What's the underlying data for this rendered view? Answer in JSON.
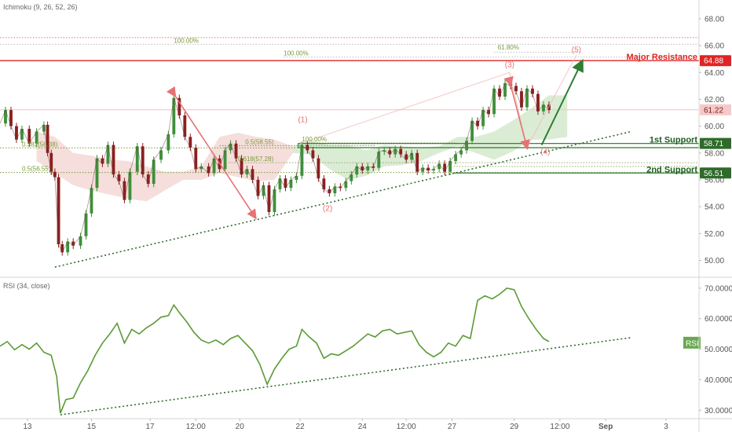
{
  "indicators": {
    "main_label": "Ichimoku (9, 26, 52, 26)",
    "rsi_label": "RSI (34, close)",
    "rsi_tag": "RSI"
  },
  "colors": {
    "up": "#3f8f3a",
    "down": "#8b1f1f",
    "resistance": "#e02424",
    "support": "#2e7d32",
    "arrow_red": "#e57373",
    "arrow_green": "#2e7d32",
    "rsi_line": "#5b9a36",
    "cloud_green": "#cfe5c7",
    "cloud_red": "#f2d3cf",
    "fib": "#7a9a3a"
  },
  "levels": {
    "major_resistance": {
      "label": "Major Resistance",
      "value": "64.88",
      "price": 64.88
    },
    "first_support": {
      "label": "1st Support",
      "value": "58.71",
      "price": 58.71
    },
    "second_support": {
      "label": "2nd Support",
      "value": "56.51",
      "price": 56.51
    },
    "current_price": {
      "value": "61.22",
      "price": 61.22
    }
  },
  "fib_labels": [
    {
      "text": "100.00%",
      "price": 66.1,
      "t": 9.5
    },
    {
      "text": "100.00%",
      "price": 65.15,
      "t": 15.5
    },
    {
      "text": "0.382(58.38)",
      "price": 58.38,
      "t": 1.2
    },
    {
      "text": "0.5(56.55)",
      "price": 56.55,
      "t": 1.2
    },
    {
      "text": "0.5(58.55)",
      "price": 58.55,
      "t": 13.4
    },
    {
      "text": "0.618(57.28)",
      "price": 57.28,
      "t": 13.0
    },
    {
      "text": "100.00%",
      "price": 58.75,
      "t": 16.5
    },
    {
      "text": "61.80%",
      "price": 65.6,
      "t": 27.2
    }
  ],
  "waves": [
    {
      "text": "(1)",
      "price": 60.3,
      "t": 16.55
    },
    {
      "text": "(2)",
      "price": 53.7,
      "t": 17.9
    },
    {
      "text": "(3)",
      "price": 64.4,
      "t": 27.85
    },
    {
      "text": "(4)",
      "price": 57.9,
      "t": 29.8
    },
    {
      "text": "(5)",
      "price": 65.5,
      "t": 31.5
    }
  ],
  "chart_data": {
    "type": "line",
    "symbol_panel": {
      "x_ticks": [
        {
          "label": "13",
          "t": 1.5
        },
        {
          "label": "15",
          "t": 5.0
        },
        {
          "label": "17",
          "t": 8.2
        },
        {
          "label": "12:00",
          "t": 10.7
        },
        {
          "label": "20",
          "t": 13.1
        },
        {
          "label": "22",
          "t": 16.4
        },
        {
          "label": "24",
          "t": 19.8
        },
        {
          "label": "12:00",
          "t": 22.2
        },
        {
          "label": "27",
          "t": 24.7
        },
        {
          "label": "29",
          "t": 28.1
        },
        {
          "label": "12:00",
          "t": 30.6
        },
        {
          "label": "Sep",
          "t": 33.1
        },
        {
          "label": "3",
          "t": 36.4
        }
      ],
      "y_ticks": [
        "50.00",
        "52.00",
        "54.00",
        "56.00",
        "58.00",
        "60.00",
        "62.00",
        "64.00",
        "66.00",
        "68.00"
      ],
      "ylim": [
        48.8,
        69.4
      ],
      "price_series": [
        [
          0.0,
          60.2
        ],
        [
          0.3,
          61.2
        ],
        [
          0.6,
          60.0
        ],
        [
          0.9,
          59.0
        ],
        [
          1.2,
          59.8
        ],
        [
          1.6,
          58.7
        ],
        [
          2.0,
          59.6
        ],
        [
          2.4,
          60.1
        ],
        [
          2.6,
          58.0
        ],
        [
          2.8,
          56.6
        ],
        [
          3.0,
          56.2
        ],
        [
          3.2,
          51.2
        ],
        [
          3.4,
          50.6
        ],
        [
          3.7,
          51.4
        ],
        [
          4.0,
          51.1
        ],
        [
          4.4,
          51.8
        ],
        [
          4.7,
          53.5
        ],
        [
          5.0,
          55.4
        ],
        [
          5.3,
          57.6
        ],
        [
          5.6,
          57.2
        ],
        [
          5.9,
          58.6
        ],
        [
          6.2,
          56.4
        ],
        [
          6.5,
          55.9
        ],
        [
          6.8,
          54.5
        ],
        [
          7.1,
          56.6
        ],
        [
          7.5,
          58.5
        ],
        [
          7.8,
          56.4
        ],
        [
          8.1,
          55.7
        ],
        [
          8.4,
          57.5
        ],
        [
          8.8,
          58.2
        ],
        [
          9.2,
          59.4
        ],
        [
          9.5,
          62.1
        ],
        [
          9.8,
          60.8
        ],
        [
          10.1,
          59.2
        ],
        [
          10.4,
          58.4
        ],
        [
          10.7,
          56.8
        ],
        [
          11.0,
          57.0
        ],
        [
          11.4,
          56.5
        ],
        [
          11.7,
          57.6
        ],
        [
          12.0,
          56.8
        ],
        [
          12.3,
          58.2
        ],
        [
          12.6,
          58.7
        ],
        [
          12.9,
          57.6
        ],
        [
          13.2,
          56.4
        ],
        [
          13.5,
          56.8
        ],
        [
          13.8,
          56.0
        ],
        [
          14.1,
          54.8
        ],
        [
          14.4,
          55.6
        ],
        [
          14.7,
          53.6
        ],
        [
          15.0,
          55.3
        ],
        [
          15.3,
          56.1
        ],
        [
          15.6,
          55.4
        ],
        [
          15.9,
          56.0
        ],
        [
          16.2,
          56.3
        ],
        [
          16.5,
          58.6
        ],
        [
          16.8,
          58.2
        ],
        [
          17.1,
          57.6
        ],
        [
          17.4,
          56.1
        ],
        [
          17.7,
          55.3
        ],
        [
          18.0,
          55.0
        ],
        [
          18.3,
          55.5
        ],
        [
          18.6,
          55.4
        ],
        [
          18.9,
          55.9
        ],
        [
          19.2,
          56.4
        ],
        [
          19.5,
          57.0
        ],
        [
          19.8,
          56.7
        ],
        [
          20.1,
          57.0
        ],
        [
          20.4,
          56.9
        ],
        [
          20.7,
          58.1
        ],
        [
          21.0,
          58.2
        ],
        [
          21.3,
          57.9
        ],
        [
          21.6,
          58.3
        ],
        [
          21.9,
          57.9
        ],
        [
          22.2,
          57.5
        ],
        [
          22.5,
          58.0
        ],
        [
          22.8,
          56.6
        ],
        [
          23.1,
          56.9
        ],
        [
          23.4,
          56.7
        ],
        [
          23.7,
          56.8
        ],
        [
          24.0,
          57.2
        ],
        [
          24.3,
          56.6
        ],
        [
          24.6,
          57.4
        ],
        [
          24.9,
          57.9
        ],
        [
          25.2,
          58.2
        ],
        [
          25.5,
          58.9
        ],
        [
          25.8,
          60.4
        ],
        [
          26.1,
          60.0
        ],
        [
          26.4,
          61.2
        ],
        [
          26.7,
          60.9
        ],
        [
          27.0,
          62.8
        ],
        [
          27.3,
          62.2
        ],
        [
          27.6,
          63.2
        ],
        [
          27.9,
          63.0
        ],
        [
          28.2,
          62.6
        ],
        [
          28.5,
          61.4
        ],
        [
          28.8,
          62.8
        ],
        [
          29.1,
          62.4
        ],
        [
          29.4,
          61.1
        ],
        [
          29.7,
          61.6
        ],
        [
          30.0,
          61.2
        ]
      ],
      "cloud_green": [
        [
          16.0,
          58.5,
          58.0
        ],
        [
          17.0,
          58.9,
          57.9
        ],
        [
          18.0,
          58.6,
          56.8
        ],
        [
          19.0,
          58.6,
          56.0
        ],
        [
          20.0,
          58.2,
          56.3
        ],
        [
          21.0,
          58.6,
          57.0
        ],
        [
          22.0,
          58.5,
          57.1
        ],
        [
          23.0,
          58.4,
          57.4
        ],
        [
          24.0,
          58.5,
          58.0
        ],
        [
          25.0,
          59.2,
          58.5
        ],
        [
          26.0,
          59.2,
          58.0
        ],
        [
          27.0,
          59.6,
          57.5
        ],
        [
          28.0,
          60.4,
          58.1
        ],
        [
          29.0,
          61.3,
          59.0
        ],
        [
          30.0,
          62.3,
          59.0
        ],
        [
          31.0,
          62.3,
          59.2
        ]
      ],
      "cloud_red": [
        [
          2.0,
          59.6,
          57.4
        ],
        [
          3.0,
          59.2,
          56.5
        ],
        [
          4.0,
          58.0,
          55.6
        ],
        [
          5.0,
          57.8,
          55.2
        ],
        [
          6.0,
          57.5,
          54.9
        ],
        [
          7.0,
          57.4,
          54.6
        ],
        [
          8.0,
          57.0,
          54.4
        ],
        [
          9.0,
          56.6,
          55.2
        ],
        [
          10.0,
          56.6,
          56.0
        ],
        [
          11.0,
          57.0,
          56.0
        ],
        [
          12.0,
          59.2,
          56.5
        ],
        [
          13.0,
          59.5,
          56.2
        ],
        [
          14.0,
          59.2,
          55.9
        ],
        [
          15.0,
          59.0,
          56.0
        ],
        [
          16.0,
          58.5,
          58.0
        ]
      ],
      "trendline": [
        [
          3.0,
          49.5
        ],
        [
          34.5,
          59.6
        ]
      ],
      "red_arrows": [
        [
          [
            9.55,
            62.3
          ],
          [
            13.95,
            53.2
          ]
        ],
        [
          [
            27.9,
            63.1
          ],
          [
            28.8,
            58.4
          ]
        ]
      ],
      "green_arrow": [
        [
          29.6,
          58.6
        ],
        [
          31.8,
          64.8
        ]
      ],
      "projection": [
        [
          16.4,
          58.7
        ],
        [
          27.85,
          64.0
        ],
        [
          28.8,
          58.4
        ],
        [
          31.5,
          65.3
        ]
      ]
    },
    "rsi_panel": {
      "y_ticks": [
        "30.0000",
        "40.0000",
        "50.0000",
        "60.0000",
        "70.0000"
      ],
      "ylim": [
        27.5,
        72.8
      ],
      "series": [
        [
          0.0,
          51.0
        ],
        [
          0.4,
          52.5
        ],
        [
          0.8,
          49.8
        ],
        [
          1.2,
          51.5
        ],
        [
          1.6,
          50.0
        ],
        [
          2.0,
          52.0
        ],
        [
          2.4,
          49.0
        ],
        [
          2.8,
          48.0
        ],
        [
          3.1,
          41.0
        ],
        [
          3.3,
          29.0
        ],
        [
          3.6,
          33.5
        ],
        [
          4.0,
          34.0
        ],
        [
          4.4,
          39.0
        ],
        [
          4.8,
          43.0
        ],
        [
          5.2,
          48.0
        ],
        [
          5.6,
          52.0
        ],
        [
          6.0,
          55.0
        ],
        [
          6.4,
          58.5
        ],
        [
          6.8,
          52.0
        ],
        [
          7.2,
          56.5
        ],
        [
          7.6,
          55.0
        ],
        [
          8.0,
          57.0
        ],
        [
          8.4,
          58.5
        ],
        [
          8.8,
          60.5
        ],
        [
          9.2,
          61.0
        ],
        [
          9.5,
          64.5
        ],
        [
          9.8,
          62.0
        ],
        [
          10.2,
          59.0
        ],
        [
          10.6,
          55.5
        ],
        [
          11.0,
          53.0
        ],
        [
          11.4,
          52.0
        ],
        [
          11.8,
          53.0
        ],
        [
          12.2,
          51.5
        ],
        [
          12.6,
          53.5
        ],
        [
          13.0,
          54.5
        ],
        [
          13.4,
          52.0
        ],
        [
          13.8,
          49.5
        ],
        [
          14.2,
          45.0
        ],
        [
          14.6,
          38.5
        ],
        [
          15.0,
          43.5
        ],
        [
          15.4,
          47.0
        ],
        [
          15.8,
          50.0
        ],
        [
          16.2,
          51.0
        ],
        [
          16.5,
          56.5
        ],
        [
          16.9,
          54.0
        ],
        [
          17.3,
          52.0
        ],
        [
          17.7,
          47.0
        ],
        [
          18.1,
          48.5
        ],
        [
          18.5,
          48.0
        ],
        [
          18.9,
          49.5
        ],
        [
          19.3,
          51.0
        ],
        [
          19.7,
          53.0
        ],
        [
          20.1,
          55.0
        ],
        [
          20.5,
          54.0
        ],
        [
          20.9,
          56.0
        ],
        [
          21.3,
          56.5
        ],
        [
          21.7,
          55.0
        ],
        [
          22.1,
          55.5
        ],
        [
          22.5,
          56.0
        ],
        [
          22.9,
          51.5
        ],
        [
          23.3,
          49.0
        ],
        [
          23.7,
          47.5
        ],
        [
          24.1,
          49.0
        ],
        [
          24.5,
          52.0
        ],
        [
          24.9,
          51.0
        ],
        [
          25.3,
          54.5
        ],
        [
          25.7,
          53.5
        ],
        [
          26.1,
          66.0
        ],
        [
          26.5,
          67.5
        ],
        [
          26.9,
          66.5
        ],
        [
          27.3,
          68.0
        ],
        [
          27.7,
          70.0
        ],
        [
          28.1,
          69.5
        ],
        [
          28.5,
          64.0
        ],
        [
          28.9,
          60.0
        ],
        [
          29.3,
          56.5
        ],
        [
          29.7,
          53.5
        ],
        [
          30.0,
          52.5
        ]
      ],
      "trendline": [
        [
          3.3,
          28.5
        ],
        [
          34.5,
          53.8
        ]
      ]
    }
  }
}
